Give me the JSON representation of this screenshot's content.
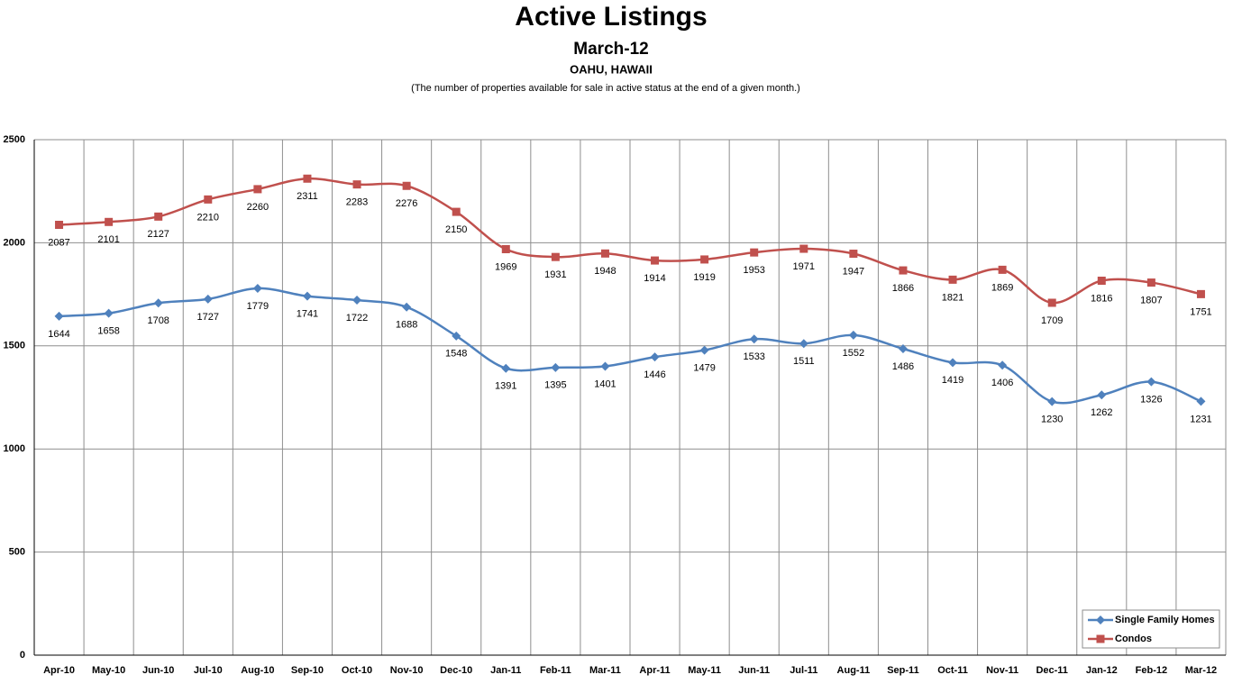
{
  "chart_data": {
    "type": "line",
    "title": "Active Listings",
    "subtitle": "March-12",
    "location": "OAHU, HAWAII",
    "note": "(The number of properties available for sale in active status at the end of a given month.)",
    "categories": [
      "Apr-10",
      "May-10",
      "Jun-10",
      "Jul-10",
      "Aug-10",
      "Sep-10",
      "Oct-10",
      "Nov-10",
      "Dec-10",
      "Jan-11",
      "Feb-11",
      "Mar-11",
      "Apr-11",
      "May-11",
      "Jun-11",
      "Jul-11",
      "Aug-11",
      "Sep-11",
      "Oct-11",
      "Nov-11",
      "Dec-11",
      "Jan-12",
      "Feb-12",
      "Mar-12"
    ],
    "series": [
      {
        "name": "Single Family Homes",
        "color": "#4f81bd",
        "marker": "diamond",
        "values": [
          1644,
          1658,
          1708,
          1727,
          1779,
          1741,
          1722,
          1688,
          1548,
          1391,
          1395,
          1401,
          1446,
          1479,
          1533,
          1511,
          1552,
          1486,
          1419,
          1406,
          1230,
          1262,
          1326,
          1231
        ]
      },
      {
        "name": "Condos",
        "color": "#c0504d",
        "marker": "square",
        "values": [
          2087,
          2101,
          2127,
          2210,
          2260,
          2311,
          2283,
          2276,
          2150,
          1969,
          1931,
          1948,
          1914,
          1919,
          1953,
          1971,
          1947,
          1866,
          1821,
          1869,
          1709,
          1816,
          1807,
          1751
        ]
      }
    ],
    "ylim": [
      0,
      2500
    ],
    "yticks": [
      0,
      500,
      1000,
      1500,
      2000,
      2500
    ],
    "grid": true,
    "legend": "bottom-right"
  }
}
